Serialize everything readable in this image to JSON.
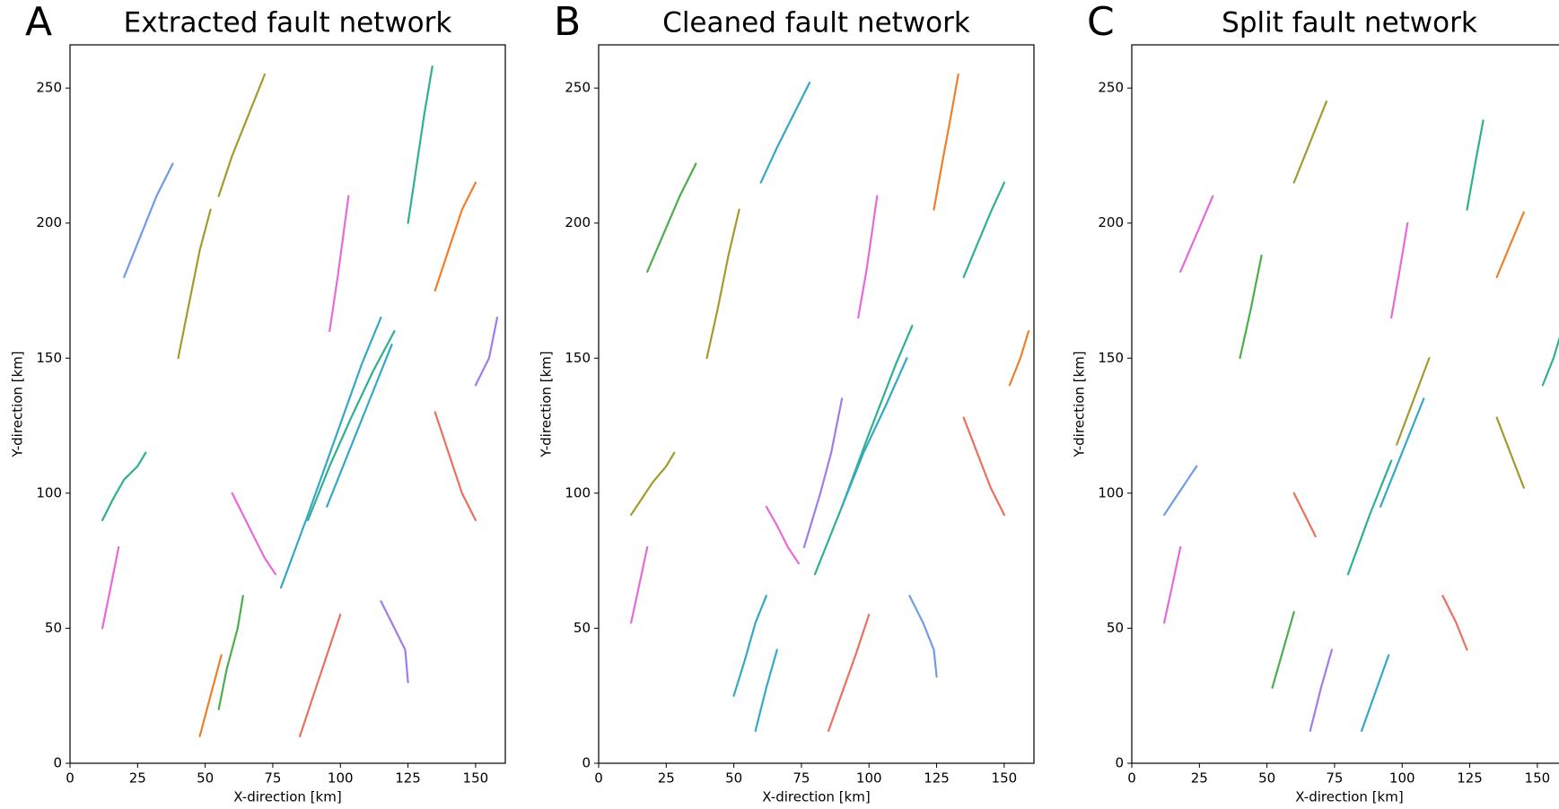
{
  "chart_data": [
    {
      "type": "line",
      "panel_label": "A",
      "title": "Extracted fault network",
      "xlabel": "X-direction [km]",
      "ylabel": "Y-direction [km]",
      "xlim": [
        0,
        161
      ],
      "ylim": [
        0,
        266
      ],
      "xticks": [
        0,
        25,
        50,
        75,
        100,
        125,
        150
      ],
      "yticks": [
        0,
        50,
        100,
        150,
        200,
        250
      ],
      "segments": [
        {
          "color": "#e66ad8",
          "x": [
            60,
            64,
            68,
            72,
            76
          ],
          "y": [
            100,
            92,
            84,
            76,
            70
          ]
        },
        {
          "color": "#35a8c7",
          "x": [
            78,
            88,
            98,
            108,
            115
          ],
          "y": [
            65,
            92,
            120,
            148,
            165
          ]
        },
        {
          "color": "#2fb08e",
          "x": [
            88,
            96,
            104,
            112,
            120
          ],
          "y": [
            90,
            110,
            128,
            145,
            160
          ]
        },
        {
          "color": "#35a8c7",
          "x": [
            95,
            103,
            111,
            119
          ],
          "y": [
            95,
            115,
            135,
            155
          ]
        },
        {
          "color": "#e66ad8",
          "x": [
            96,
            99,
            101,
            103
          ],
          "y": [
            160,
            180,
            195,
            210
          ]
        },
        {
          "color": "#a39b2e",
          "x": [
            55,
            60,
            66,
            72
          ],
          "y": [
            210,
            225,
            240,
            255
          ]
        },
        {
          "color": "#2fb08e",
          "x": [
            125,
            128,
            131,
            134
          ],
          "y": [
            200,
            220,
            240,
            258
          ]
        },
        {
          "color": "#f07f2a",
          "x": [
            135,
            140,
            145,
            150
          ],
          "y": [
            175,
            190,
            205,
            215
          ]
        },
        {
          "color": "#2fb08e",
          "x": [
            12,
            16,
            20,
            25,
            28
          ],
          "y": [
            90,
            98,
            105,
            110,
            115
          ]
        },
        {
          "color": "#e66ad8",
          "x": [
            12,
            15,
            18
          ],
          "y": [
            50,
            65,
            80
          ]
        },
        {
          "color": "#4cae4c",
          "x": [
            55,
            58,
            62,
            64
          ],
          "y": [
            20,
            35,
            50,
            62
          ]
        },
        {
          "color": "#a07ce8",
          "x": [
            115,
            120,
            124,
            125
          ],
          "y": [
            60,
            50,
            42,
            30
          ]
        },
        {
          "color": "#e8715f",
          "x": [
            85,
            90,
            95,
            100
          ],
          "y": [
            10,
            25,
            40,
            55
          ]
        },
        {
          "color": "#6f9be8",
          "x": [
            20,
            26,
            32,
            38
          ],
          "y": [
            180,
            195,
            210,
            222
          ]
        },
        {
          "color": "#a39b2e",
          "x": [
            40,
            44,
            48,
            52
          ],
          "y": [
            150,
            170,
            190,
            205
          ]
        },
        {
          "color": "#e8715f",
          "x": [
            135,
            140,
            145,
            150
          ],
          "y": [
            130,
            115,
            100,
            90
          ]
        },
        {
          "color": "#a07ce8",
          "x": [
            150,
            155,
            158
          ],
          "y": [
            140,
            150,
            165
          ]
        },
        {
          "color": "#f07f2a",
          "x": [
            48,
            52,
            56
          ],
          "y": [
            10,
            25,
            40
          ]
        }
      ]
    },
    {
      "type": "line",
      "panel_label": "B",
      "title": "Cleaned fault network",
      "xlabel": "X-direction [km]",
      "ylabel": "Y-direction [km]",
      "xlim": [
        0,
        161
      ],
      "ylim": [
        0,
        266
      ],
      "xticks": [
        0,
        25,
        50,
        75,
        100,
        125,
        150
      ],
      "yticks": [
        0,
        50,
        100,
        150,
        200,
        250
      ],
      "segments": [
        {
          "color": "#e66ad8",
          "x": [
            62,
            66,
            70,
            74
          ],
          "y": [
            95,
            88,
            80,
            74
          ]
        },
        {
          "color": "#2fb08e",
          "x": [
            80,
            90,
            100,
            110,
            116
          ],
          "y": [
            70,
            95,
            122,
            148,
            162
          ]
        },
        {
          "color": "#35a8c7",
          "x": [
            90,
            98,
            106,
            114
          ],
          "y": [
            95,
            115,
            132,
            150
          ]
        },
        {
          "color": "#a07ce8",
          "x": [
            76,
            82,
            86,
            90
          ],
          "y": [
            80,
            100,
            115,
            135
          ]
        },
        {
          "color": "#e66ad8",
          "x": [
            96,
            99,
            101,
            103
          ],
          "y": [
            165,
            182,
            196,
            210
          ]
        },
        {
          "color": "#35a8c7",
          "x": [
            60,
            66,
            72,
            78
          ],
          "y": [
            215,
            228,
            240,
            252
          ]
        },
        {
          "color": "#f07f2a",
          "x": [
            124,
            127,
            130,
            133
          ],
          "y": [
            205,
            222,
            238,
            255
          ]
        },
        {
          "color": "#2fb08e",
          "x": [
            135,
            140,
            145,
            150
          ],
          "y": [
            180,
            192,
            204,
            215
          ]
        },
        {
          "color": "#a39b2e",
          "x": [
            12,
            16,
            20,
            25,
            28
          ],
          "y": [
            92,
            98,
            104,
            110,
            115
          ]
        },
        {
          "color": "#e66ad8",
          "x": [
            12,
            15,
            18
          ],
          "y": [
            52,
            66,
            80
          ]
        },
        {
          "color": "#35a8c7",
          "x": [
            50,
            54,
            58,
            62
          ],
          "y": [
            25,
            38,
            52,
            62
          ]
        },
        {
          "color": "#6f9be8",
          "x": [
            115,
            120,
            124,
            125
          ],
          "y": [
            62,
            52,
            42,
            32
          ]
        },
        {
          "color": "#e8715f",
          "x": [
            85,
            90,
            95,
            100
          ],
          "y": [
            12,
            26,
            40,
            55
          ]
        },
        {
          "color": "#4cae4c",
          "x": [
            18,
            24,
            30,
            36
          ],
          "y": [
            182,
            196,
            210,
            222
          ]
        },
        {
          "color": "#a39b2e",
          "x": [
            40,
            44,
            48,
            52
          ],
          "y": [
            150,
            168,
            188,
            205
          ]
        },
        {
          "color": "#e8715f",
          "x": [
            135,
            140,
            145,
            150
          ],
          "y": [
            128,
            115,
            102,
            92
          ]
        },
        {
          "color": "#f07f2a",
          "x": [
            152,
            156,
            159
          ],
          "y": [
            140,
            150,
            160
          ]
        },
        {
          "color": "#35a8c7",
          "x": [
            58,
            62,
            66
          ],
          "y": [
            12,
            28,
            42
          ]
        }
      ]
    },
    {
      "type": "line",
      "panel_label": "C",
      "title": "Split fault network",
      "xlabel": "X-direction [km]",
      "ylabel": "Y-direction [km]",
      "xlim": [
        0,
        161
      ],
      "ylim": [
        0,
        266
      ],
      "xticks": [
        0,
        25,
        50,
        75,
        100,
        125,
        150
      ],
      "yticks": [
        0,
        50,
        100,
        150,
        200,
        250
      ],
      "segments": [
        {
          "color": "#e8715f",
          "x": [
            60,
            64,
            68
          ],
          "y": [
            100,
            92,
            84
          ]
        },
        {
          "color": "#2fb08e",
          "x": [
            80,
            88,
            96
          ],
          "y": [
            70,
            92,
            112
          ]
        },
        {
          "color": "#a39b2e",
          "x": [
            98,
            104,
            110
          ],
          "y": [
            118,
            134,
            150
          ]
        },
        {
          "color": "#35a8c7",
          "x": [
            92,
            100,
            108
          ],
          "y": [
            95,
            115,
            135
          ]
        },
        {
          "color": "#e66ad8",
          "x": [
            96,
            99,
            102
          ],
          "y": [
            165,
            182,
            200
          ]
        },
        {
          "color": "#a39b2e",
          "x": [
            60,
            66,
            72
          ],
          "y": [
            215,
            230,
            245
          ]
        },
        {
          "color": "#2fb08e",
          "x": [
            124,
            127,
            130
          ],
          "y": [
            205,
            222,
            238
          ]
        },
        {
          "color": "#f07f2a",
          "x": [
            135,
            140,
            145
          ],
          "y": [
            180,
            192,
            204
          ]
        },
        {
          "color": "#6f9be8",
          "x": [
            12,
            16,
            20,
            24
          ],
          "y": [
            92,
            98,
            104,
            110
          ]
        },
        {
          "color": "#e66ad8",
          "x": [
            12,
            15,
            18
          ],
          "y": [
            52,
            66,
            80
          ]
        },
        {
          "color": "#4cae4c",
          "x": [
            52,
            56,
            60
          ],
          "y": [
            28,
            42,
            56
          ]
        },
        {
          "color": "#e8715f",
          "x": [
            115,
            120,
            124
          ],
          "y": [
            62,
            52,
            42
          ]
        },
        {
          "color": "#35a8c7",
          "x": [
            85,
            90,
            95
          ],
          "y": [
            12,
            26,
            40
          ]
        },
        {
          "color": "#e66ad8",
          "x": [
            18,
            24,
            30
          ],
          "y": [
            182,
            196,
            210
          ]
        },
        {
          "color": "#4cae4c",
          "x": [
            40,
            44,
            48
          ],
          "y": [
            150,
            168,
            188
          ]
        },
        {
          "color": "#a39b2e",
          "x": [
            135,
            140,
            145
          ],
          "y": [
            128,
            115,
            102
          ]
        },
        {
          "color": "#2fb08e",
          "x": [
            152,
            156,
            159
          ],
          "y": [
            140,
            150,
            160
          ]
        },
        {
          "color": "#a07ce8",
          "x": [
            66,
            70,
            74
          ],
          "y": [
            12,
            28,
            42
          ]
        }
      ]
    }
  ]
}
